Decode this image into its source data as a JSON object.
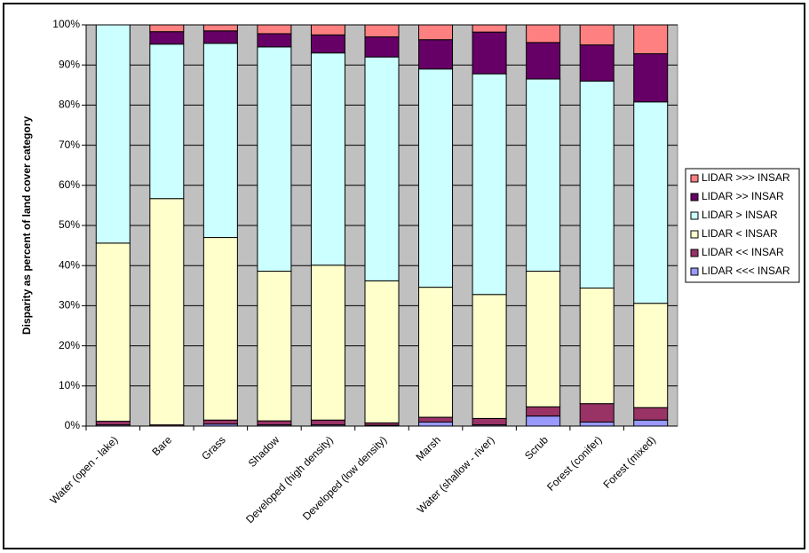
{
  "chart_data": {
    "type": "stacked_percent_bar",
    "y_label": "Disparity as percent of land cover category",
    "categories": [
      "Water (open - lake)",
      "Bare",
      "Grass",
      "Shadow",
      "Developed (high density)",
      "Developed (low density)",
      "Marsh",
      "Water (shallow - river)",
      "Scrub",
      "Forest (conifer)",
      "Forest (mixed)"
    ],
    "series": [
      {
        "name": "LIDAR <<< INSAR",
        "color": "#9999ff",
        "values": [
          0.3,
          0,
          0.5,
          0.3,
          0.3,
          0.2,
          1.0,
          0.3,
          2.5,
          1.0,
          1.5
        ]
      },
      {
        "name": "LIDAR << INSAR",
        "color": "#993366",
        "values": [
          0.9,
          0.3,
          1.0,
          1.0,
          1.2,
          0.6,
          1.2,
          1.6,
          2.3,
          4.6,
          3.1
        ]
      },
      {
        "name": "LIDAR < INSAR",
        "color": "#ffffcc",
        "values": [
          44.4,
          56.4,
          45.5,
          37.3,
          38.6,
          35.4,
          32.4,
          30.9,
          33.8,
          28.8,
          26.0
        ]
      },
      {
        "name": "LIDAR > INSAR",
        "color": "#ccffff",
        "values": [
          54.4,
          38.5,
          48.4,
          55.9,
          52.9,
          55.8,
          54.4,
          55.0,
          47.9,
          51.6,
          50.2
        ]
      },
      {
        "name": "LIDAR >> INSAR",
        "color": "#660066",
        "values": [
          0,
          3.1,
          3.1,
          3.3,
          4.5,
          5.0,
          7.3,
          10.4,
          9.1,
          9.0,
          12.0
        ]
      },
      {
        "name": "LIDAR >>> INSAR",
        "color": "#ff8080",
        "values": [
          0,
          1.7,
          1.5,
          2.2,
          2.5,
          3.0,
          3.7,
          1.8,
          4.4,
          5.0,
          7.2
        ]
      }
    ],
    "ylim": [
      0,
      100
    ],
    "yticks": [
      {
        "value": 0,
        "label": "0%"
      },
      {
        "value": 10,
        "label": "10%"
      },
      {
        "value": 20,
        "label": "20%"
      },
      {
        "value": 30,
        "label": "30%"
      },
      {
        "value": 40,
        "label": "40%"
      },
      {
        "value": 50,
        "label": "50%"
      },
      {
        "value": 60,
        "label": "60%"
      },
      {
        "value": 70,
        "label": "70%"
      },
      {
        "value": 80,
        "label": "80%"
      },
      {
        "value": 90,
        "label": "90%"
      },
      {
        "value": 100,
        "label": "100%"
      }
    ],
    "grid": true,
    "plot_background": "#c0c0c0",
    "legend": "right"
  }
}
